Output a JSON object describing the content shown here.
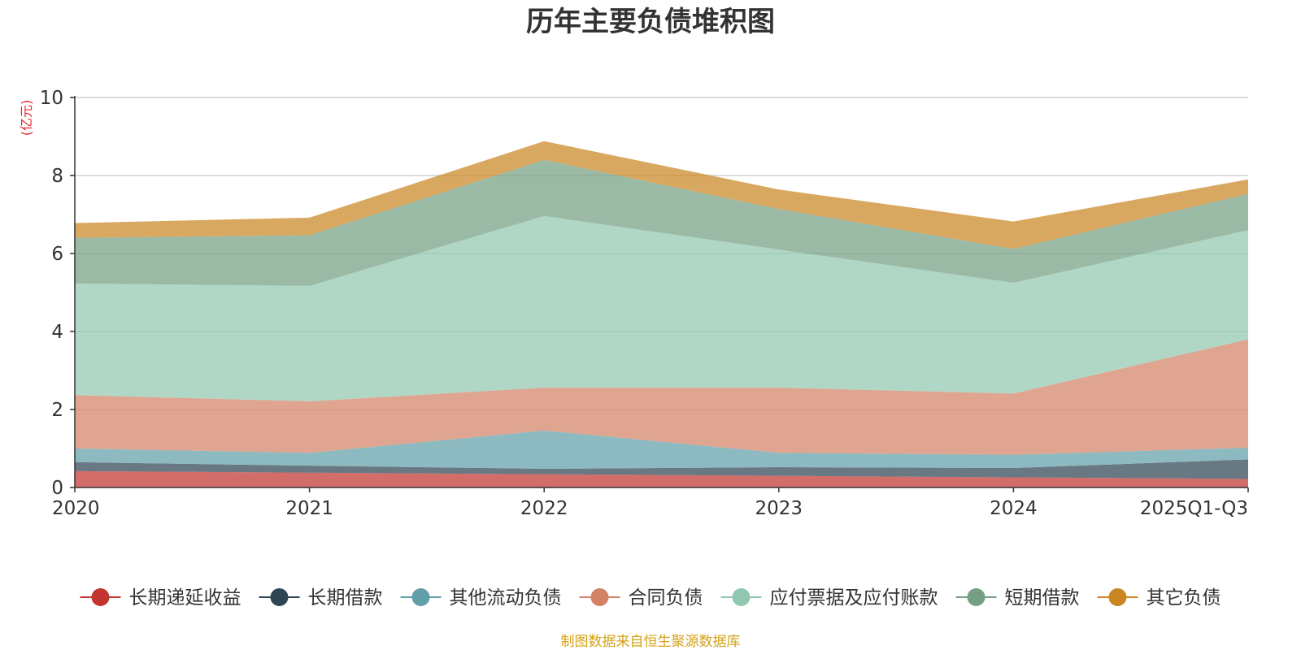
{
  "chart_data": {
    "type": "area",
    "stacked": true,
    "title": "历年主要负债堆积图",
    "xlabel": "",
    "ylabel": "(亿元)",
    "ylim": [
      0,
      10
    ],
    "yticks": [
      "0",
      "2",
      "4",
      "6",
      "8",
      "10"
    ],
    "categories": [
      "2020",
      "2021",
      "2022",
      "2023",
      "2024",
      "2025Q1-Q3"
    ],
    "grid": true,
    "legend_position": "bottom",
    "series": [
      {
        "name": "长期递延收益",
        "color": "#c23531",
        "values": [
          0.42,
          0.38,
          0.34,
          0.3,
          0.26,
          0.22
        ]
      },
      {
        "name": "长期借款",
        "color": "#2f4554",
        "values": [
          0.23,
          0.18,
          0.14,
          0.22,
          0.24,
          0.5
        ]
      },
      {
        "name": "其他流动负债",
        "color": "#61a0a8",
        "values": [
          0.35,
          0.33,
          0.98,
          0.37,
          0.34,
          0.3
        ]
      },
      {
        "name": "合同负债",
        "color": "#d48265",
        "values": [
          1.37,
          1.32,
          1.1,
          1.67,
          1.57,
          2.78
        ]
      },
      {
        "name": "应付票据及应付账款",
        "color": "#91c7ae",
        "values": [
          2.86,
          2.96,
          4.4,
          3.54,
          2.84,
          2.8
        ]
      },
      {
        "name": "短期借款",
        "color": "#749f83",
        "values": [
          1.17,
          1.3,
          1.44,
          1.04,
          0.87,
          0.93
        ]
      },
      {
        "name": "其它负债",
        "color": "#ca8622",
        "values": [
          0.38,
          0.45,
          0.48,
          0.5,
          0.7,
          0.37
        ]
      }
    ]
  },
  "footer": {
    "source": "制图数据来自恒生聚源数据库"
  }
}
